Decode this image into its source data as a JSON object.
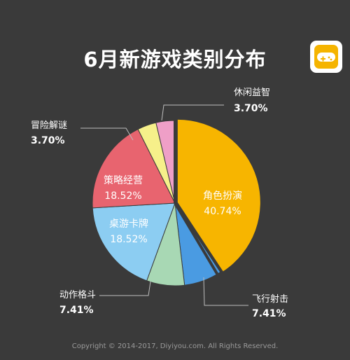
{
  "title": "6月新游戏类别分布",
  "footer": "Copyright © 2014-2017, Diyiyou.com. All Rights Reserved.",
  "chart_data": {
    "type": "pie",
    "title": "6月新游戏类别分布",
    "slices": [
      {
        "label": "角色扮演",
        "value": "40.74%",
        "pct": 40.74,
        "color": "#f7b500",
        "label_pos": "inside"
      },
      {
        "label": "飞行射击",
        "value": "7.41%",
        "pct": 7.41,
        "color": "#4a9be2",
        "label_pos": "outside"
      },
      {
        "label": "动作格斗",
        "value": "7.41%",
        "pct": 7.41,
        "color": "#a8d8b4",
        "label_pos": "outside"
      },
      {
        "label": "桌游卡牌",
        "value": "18.52%",
        "pct": 18.52,
        "color": "#8ccdf2",
        "label_pos": "inside"
      },
      {
        "label": "策略经营",
        "value": "18.52%",
        "pct": 18.52,
        "color": "#e8646f",
        "label_pos": "inside"
      },
      {
        "label": "冒险解谜",
        "value": "3.70%",
        "pct": 3.7,
        "color": "#f6f08a",
        "label_pos": "outside"
      },
      {
        "label": "休闲益智",
        "value": "3.70%",
        "pct": 3.7,
        "color": "#ef9fc7",
        "label_pos": "outside"
      }
    ]
  }
}
